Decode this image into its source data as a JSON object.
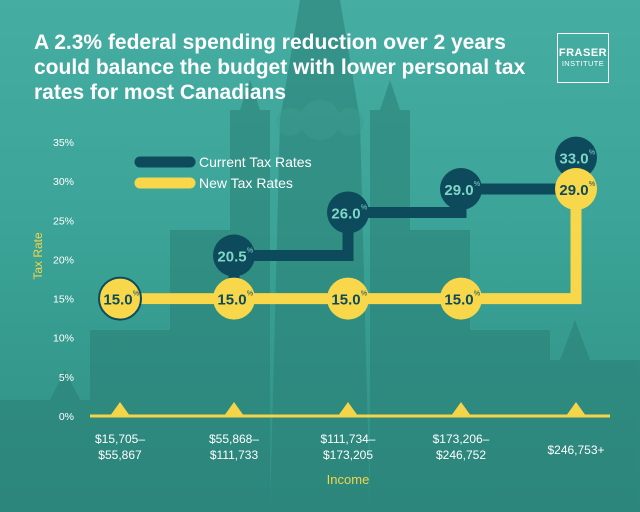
{
  "title": "A 2.3% federal spending reduction over 2 years could balance the budget with lower personal tax rates for most Canadians",
  "logo": {
    "line1": "FRASER",
    "line2": "INSTITUTE"
  },
  "colors": {
    "current": "#0d4a5c",
    "new": "#f8d84a",
    "axis": "#f4d54a",
    "text": "#ffffff"
  },
  "chart_data": {
    "type": "line",
    "step": true,
    "xlabel": "Income",
    "ylabel": "Tax Rate",
    "ylim": [
      0,
      35
    ],
    "yticks": [
      "0%",
      "5%",
      "10%",
      "15%",
      "20%",
      "25%",
      "30%",
      "35%"
    ],
    "categories": [
      [
        "$15,705–",
        "$55,867"
      ],
      [
        "$55,868–",
        "$111,733"
      ],
      [
        "$111,734–",
        "$173,205"
      ],
      [
        "$173,206–",
        "$246,752"
      ],
      [
        "$246,753+"
      ]
    ],
    "series": [
      {
        "name": "Current Tax Rates",
        "values": [
          15.0,
          20.5,
          26.0,
          29.0,
          33.0
        ],
        "labels": [
          "15.0",
          "20.5",
          "26.0",
          "29.0",
          "33.0"
        ]
      },
      {
        "name": "New Tax Rates",
        "values": [
          15.0,
          15.0,
          15.0,
          15.0,
          29.0
        ],
        "labels": [
          "15.0",
          "15.0",
          "15.0",
          "15.0",
          "29.0"
        ]
      }
    ],
    "unit_suffix": "%",
    "legend": "top-left"
  }
}
